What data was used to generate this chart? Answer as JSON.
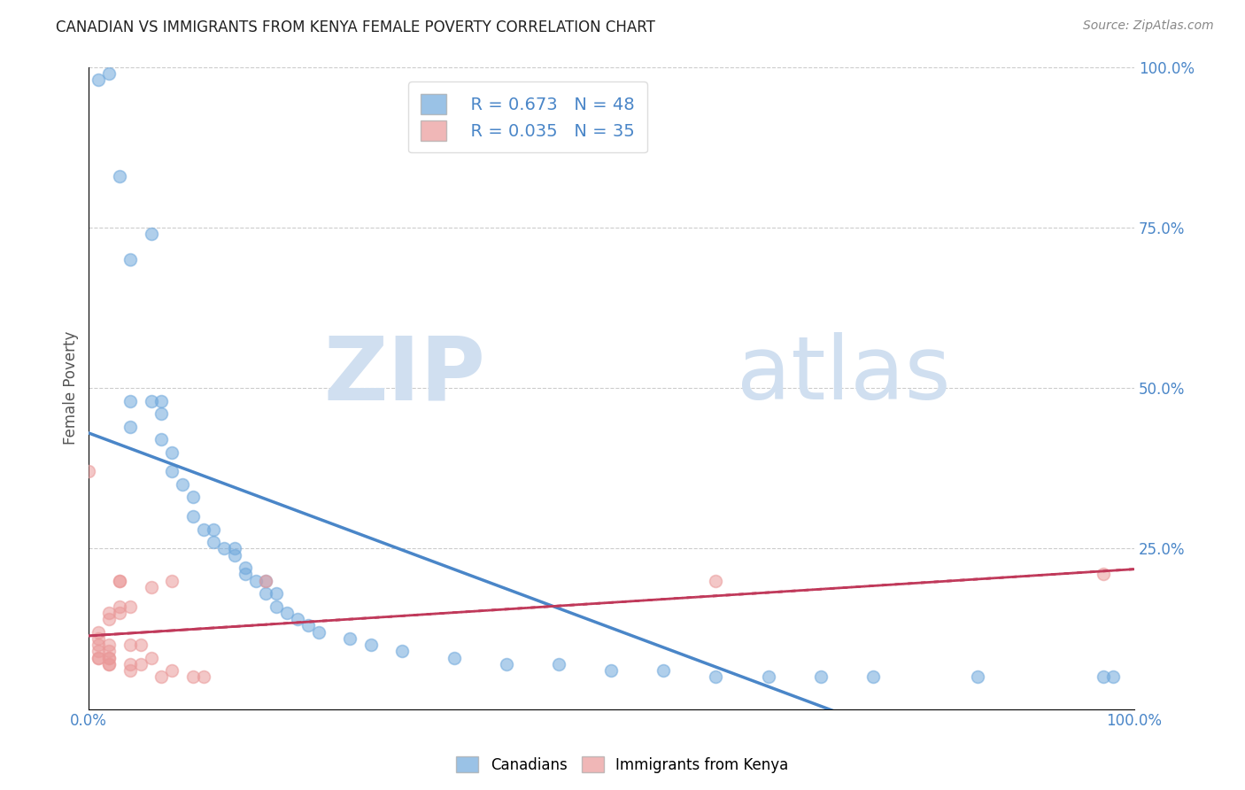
{
  "title": "CANADIAN VS IMMIGRANTS FROM KENYA FEMALE POVERTY CORRELATION CHART",
  "source": "Source: ZipAtlas.com",
  "ylabel": "Female Poverty",
  "xlabel": "",
  "xlim": [
    0.0,
    1.0
  ],
  "ylim": [
    0.0,
    1.0
  ],
  "xticks": [
    0.0,
    0.25,
    0.5,
    0.75,
    1.0
  ],
  "yticks": [
    0.0,
    0.25,
    0.5,
    0.75,
    1.0
  ],
  "xticklabels": [
    "0.0%",
    "",
    "",
    "",
    "100.0%"
  ],
  "yticklabels": [
    "",
    "25.0%",
    "50.0%",
    "75.0%",
    "100.0%"
  ],
  "legend_R_canadian": "R = 0.673",
  "legend_N_canadian": "N = 48",
  "legend_R_kenya": "R = 0.035",
  "legend_N_kenya": "N = 35",
  "canadian_color": "#6fa8dc",
  "kenya_color": "#ea9999",
  "trendline_canadian_color": "#4a86c8",
  "trendline_kenya_color": "#c0395a",
  "watermark_zip": "ZIP",
  "watermark_atlas": "atlas",
  "watermark_color": "#d0dff0",
  "canadian_points": [
    [
      0.01,
      0.98
    ],
    [
      0.02,
      0.99
    ],
    [
      0.03,
      0.83
    ],
    [
      0.04,
      0.7
    ],
    [
      0.06,
      0.74
    ],
    [
      0.04,
      0.48
    ],
    [
      0.06,
      0.48
    ],
    [
      0.07,
      0.48
    ],
    [
      0.07,
      0.46
    ],
    [
      0.04,
      0.44
    ],
    [
      0.07,
      0.42
    ],
    [
      0.08,
      0.4
    ],
    [
      0.08,
      0.37
    ],
    [
      0.09,
      0.35
    ],
    [
      0.1,
      0.33
    ],
    [
      0.1,
      0.3
    ],
    [
      0.11,
      0.28
    ],
    [
      0.12,
      0.28
    ],
    [
      0.12,
      0.26
    ],
    [
      0.13,
      0.25
    ],
    [
      0.14,
      0.25
    ],
    [
      0.14,
      0.24
    ],
    [
      0.15,
      0.22
    ],
    [
      0.15,
      0.21
    ],
    [
      0.16,
      0.2
    ],
    [
      0.17,
      0.2
    ],
    [
      0.17,
      0.18
    ],
    [
      0.18,
      0.18
    ],
    [
      0.18,
      0.16
    ],
    [
      0.19,
      0.15
    ],
    [
      0.2,
      0.14
    ],
    [
      0.21,
      0.13
    ],
    [
      0.22,
      0.12
    ],
    [
      0.25,
      0.11
    ],
    [
      0.27,
      0.1
    ],
    [
      0.3,
      0.09
    ],
    [
      0.35,
      0.08
    ],
    [
      0.4,
      0.07
    ],
    [
      0.45,
      0.07
    ],
    [
      0.5,
      0.06
    ],
    [
      0.55,
      0.06
    ],
    [
      0.6,
      0.05
    ],
    [
      0.65,
      0.05
    ],
    [
      0.7,
      0.05
    ],
    [
      0.75,
      0.05
    ],
    [
      0.85,
      0.05
    ],
    [
      0.97,
      0.05
    ],
    [
      0.98,
      0.05
    ]
  ],
  "kenya_points": [
    [
      0.0,
      0.37
    ],
    [
      0.01,
      0.12
    ],
    [
      0.01,
      0.11
    ],
    [
      0.01,
      0.1
    ],
    [
      0.01,
      0.09
    ],
    [
      0.01,
      0.08
    ],
    [
      0.01,
      0.08
    ],
    [
      0.02,
      0.15
    ],
    [
      0.02,
      0.14
    ],
    [
      0.02,
      0.1
    ],
    [
      0.02,
      0.09
    ],
    [
      0.02,
      0.08
    ],
    [
      0.02,
      0.08
    ],
    [
      0.02,
      0.07
    ],
    [
      0.02,
      0.07
    ],
    [
      0.03,
      0.2
    ],
    [
      0.03,
      0.2
    ],
    [
      0.03,
      0.16
    ],
    [
      0.03,
      0.15
    ],
    [
      0.04,
      0.16
    ],
    [
      0.04,
      0.1
    ],
    [
      0.04,
      0.07
    ],
    [
      0.04,
      0.06
    ],
    [
      0.05,
      0.1
    ],
    [
      0.05,
      0.07
    ],
    [
      0.06,
      0.19
    ],
    [
      0.06,
      0.08
    ],
    [
      0.07,
      0.05
    ],
    [
      0.08,
      0.2
    ],
    [
      0.08,
      0.06
    ],
    [
      0.1,
      0.05
    ],
    [
      0.11,
      0.05
    ],
    [
      0.17,
      0.2
    ],
    [
      0.6,
      0.2
    ],
    [
      0.97,
      0.21
    ]
  ]
}
